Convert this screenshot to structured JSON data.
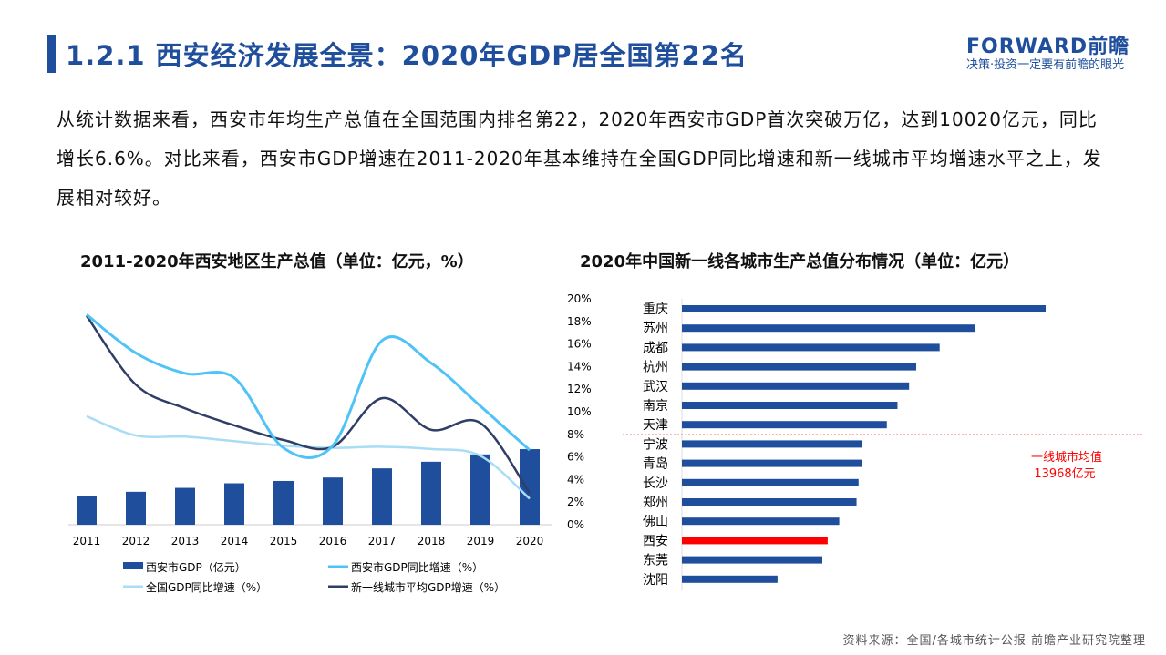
{
  "header": {
    "title": "1.2.1 西安经济发展全景：2020年GDP居全国第22名",
    "logo": "FORWARD前瞻",
    "slogan": "决策·投资一定要有前瞻的眼光"
  },
  "intro": "从统计数据来看，西安市年均生产总值在全国范围内排名第22，2020年西安市GDP首次突破万亿，达到10020亿元，同比增长6.6%。对比来看，西安市GDP增速在2011-2020年基本维持在全国GDP同比增速和新一线城市平均增速水平之上，发展相对较好。",
  "footer": "资料来源：全国/各城市统计公报 前瞻产业研究院整理",
  "colors": {
    "bar": "#1f4e9c",
    "xian_growth": "#4fc3f7",
    "national": "#a9dcf5",
    "newtier": "#2f3e66",
    "highlight": "#ff0000"
  },
  "chart_data": [
    {
      "type": "bar+line",
      "title": "2011-2020年西安地区生产总值（单位：亿元，%）",
      "categories": [
        "2011",
        "2012",
        "2013",
        "2014",
        "2015",
        "2016",
        "2017",
        "2018",
        "2019",
        "2020"
      ],
      "series": [
        {
          "name": "西安市GDP（亿元）",
          "kind": "bar",
          "values": [
            3862,
            4366,
            4884,
            5493,
            5801,
            6257,
            7470,
            8350,
            9321,
            10020
          ]
        },
        {
          "name": "西安市GDP同比增速（%）",
          "kind": "line",
          "values": [
            18.6,
            15.2,
            13.4,
            13.0,
            6.8,
            7.0,
            16.3,
            14.3,
            10.5,
            6.6
          ]
        },
        {
          "name": "全国GDP同比增速（%）",
          "kind": "line",
          "values": [
            9.6,
            7.9,
            7.8,
            7.4,
            7.0,
            6.8,
            6.9,
            6.7,
            6.1,
            2.3
          ]
        },
        {
          "name": "新一线城市平均GDP增速（%）",
          "kind": "line",
          "values": [
            18.5,
            12.4,
            10.3,
            8.8,
            7.5,
            6.9,
            11.2,
            8.4,
            9.0,
            2.8
          ]
        }
      ],
      "y2ticks": [
        "20%",
        "18%",
        "16%",
        "14%",
        "12%",
        "10%",
        "8%",
        "6%",
        "4%",
        "2%",
        "0%"
      ],
      "y2lim": [
        0,
        20
      ]
    },
    {
      "type": "bar",
      "orientation": "horizontal",
      "title": "2020年中国新一线各城市生产总值分布情况（单位：亿元）",
      "categories": [
        "重庆",
        "苏州",
        "成都",
        "杭州",
        "武汉",
        "南京",
        "天津",
        "宁波",
        "青岛",
        "长沙",
        "郑州",
        "佛山",
        "西安",
        "东莞",
        "沈阳"
      ],
      "values": [
        25003,
        20171,
        17717,
        16106,
        15616,
        14818,
        14084,
        12409,
        12401,
        12143,
        12003,
        10816,
        10020,
        9650,
        6572
      ],
      "highlight": "西安",
      "reference": {
        "label": "一线城市均值",
        "value_label": "13968亿元",
        "value": 13968
      }
    }
  ]
}
